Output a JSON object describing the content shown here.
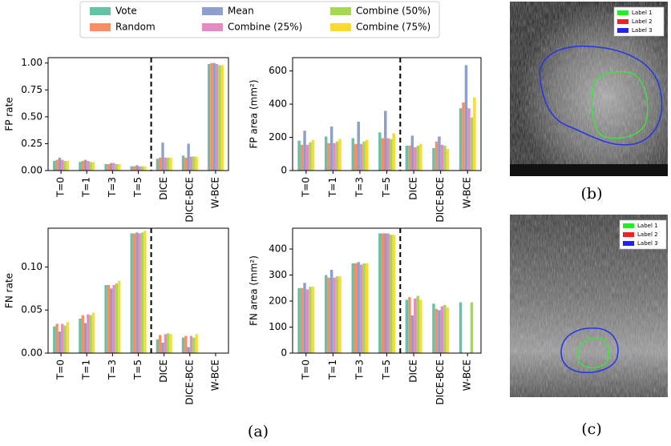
{
  "legend": {
    "names": [
      "Vote",
      "Random",
      "Mean",
      "Combine (25%)",
      "Combine (50%)",
      "Combine (75%)"
    ],
    "colors": [
      "#66c2a5",
      "#fc8d62",
      "#8da0cb",
      "#e78ac3",
      "#a6d854",
      "#ffd92f"
    ]
  },
  "chart_data": [
    {
      "type": "bar",
      "ylabel": "FP rate",
      "categories": [
        "T=0",
        "T=1",
        "T=3",
        "T=5",
        "DICE",
        "DICE-BCE",
        "W-BCE"
      ],
      "series": [
        {
          "values": [
            0.09,
            0.08,
            0.06,
            0.04,
            0.11,
            0.14,
            0.99
          ]
        },
        {
          "values": [
            0.1,
            0.09,
            0.06,
            0.04,
            0.12,
            0.12,
            1.0
          ]
        },
        {
          "values": [
            0.12,
            0.1,
            0.07,
            0.05,
            0.26,
            0.25,
            1.0
          ]
        },
        {
          "values": [
            0.1,
            0.09,
            0.07,
            0.04,
            0.12,
            0.13,
            0.99
          ]
        },
        {
          "values": [
            0.09,
            0.08,
            0.06,
            0.04,
            0.12,
            0.13,
            0.98
          ]
        },
        {
          "values": [
            0.09,
            0.08,
            0.06,
            0.04,
            0.12,
            0.13,
            0.98
          ]
        }
      ],
      "ylim": [
        0,
        1.05
      ],
      "yticks": [
        {
          "value": 0,
          "label": "0.00"
        },
        {
          "value": 0.25,
          "label": "0.25"
        },
        {
          "value": 0.5,
          "label": "0.50"
        },
        {
          "value": 0.75,
          "label": "0.75"
        },
        {
          "value": 1,
          "label": "1.00"
        }
      ]
    },
    {
      "type": "bar",
      "ylabel": "FP area (mm²)",
      "categories": [
        "T=0",
        "T=1",
        "T=3",
        "T=5",
        "DICE",
        "DICE-BCE",
        "W-BCE"
      ],
      "series": [
        {
          "values": [
            180,
            205,
            195,
            230,
            150,
            135,
            375
          ]
        },
        {
          "values": [
            155,
            165,
            160,
            195,
            150,
            175,
            410
          ]
        },
        {
          "values": [
            240,
            265,
            295,
            360,
            210,
            205,
            635
          ]
        },
        {
          "values": [
            155,
            165,
            160,
            195,
            140,
            155,
            375
          ]
        },
        {
          "values": [
            170,
            175,
            175,
            190,
            150,
            150,
            320
          ]
        },
        {
          "values": [
            185,
            190,
            185,
            225,
            160,
            130,
            440
          ]
        }
      ],
      "ylim": [
        0,
        680
      ],
      "yticks": [
        0,
        200,
        400,
        600
      ]
    },
    {
      "type": "bar",
      "ylabel": "FN rate",
      "categories": [
        "T=0",
        "T=1",
        "T=3",
        "T=5",
        "DICE",
        "DICE-BCE",
        "W-BCE"
      ],
      "series": [
        {
          "values": [
            0.031,
            0.04,
            0.079,
            0.139,
            0.016,
            0.018,
            0
          ]
        },
        {
          "values": [
            0.034,
            0.044,
            0.079,
            0.139,
            0.021,
            0.02,
            0
          ]
        },
        {
          "values": [
            0.025,
            0.035,
            0.075,
            0.14,
            0.012,
            0.007,
            0
          ]
        },
        {
          "values": [
            0.034,
            0.045,
            0.079,
            0.139,
            0.022,
            0.02,
            0
          ]
        },
        {
          "values": [
            0.032,
            0.044,
            0.081,
            0.14,
            0.023,
            0.018,
            0
          ]
        },
        {
          "values": [
            0.036,
            0.047,
            0.084,
            0.142,
            0.022,
            0.022,
            0
          ]
        }
      ],
      "ylim": [
        0,
        0.145
      ],
      "yticks": [
        {
          "value": 0,
          "label": "0.00"
        },
        {
          "value": 0.05,
          "label": "0.05"
        },
        {
          "value": 0.1,
          "label": "0.10"
        }
      ]
    },
    {
      "type": "bar",
      "ylabel": "FN area (mm²)",
      "categories": [
        "T=0",
        "T=1",
        "T=3",
        "T=5",
        "DICE",
        "DICE-BCE",
        "W-BCE"
      ],
      "series": [
        {
          "values": [
            250,
            300,
            345,
            460,
            205,
            190,
            195
          ]
        },
        {
          "values": [
            250,
            290,
            345,
            460,
            215,
            170,
            0
          ]
        },
        {
          "values": [
            270,
            320,
            350,
            460,
            145,
            165,
            0
          ]
        },
        {
          "values": [
            245,
            290,
            340,
            460,
            210,
            180,
            0
          ]
        },
        {
          "values": [
            255,
            295,
            345,
            455,
            220,
            185,
            195
          ]
        },
        {
          "values": [
            255,
            295,
            345,
            455,
            205,
            175,
            0
          ]
        }
      ],
      "ylim": [
        0,
        480
      ],
      "yticks": [
        0,
        100,
        200,
        300,
        400
      ]
    }
  ],
  "caption": "(a)",
  "images": [
    {
      "caption": "(b)",
      "labels": [
        "Label 1",
        "Label 2",
        "Label 3"
      ],
      "label_colors": [
        "#22ee22",
        "#ee2222",
        "#2222ee"
      ]
    },
    {
      "caption": "(c)",
      "labels": [
        "Label 1",
        "Label 2",
        "Label 3"
      ],
      "label_colors": [
        "#22ee22",
        "#ee2222",
        "#2222ee"
      ]
    }
  ]
}
